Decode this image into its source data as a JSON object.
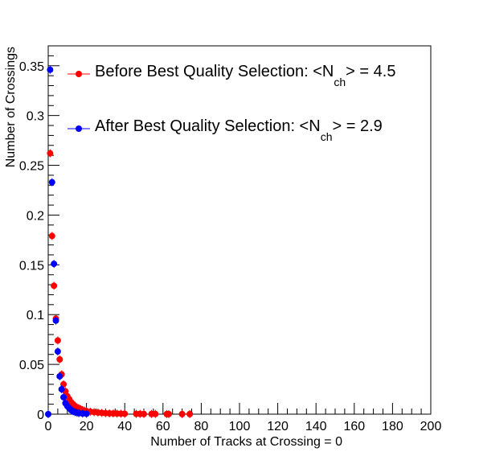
{
  "chart_data": {
    "type": "scatter",
    "xlabel": "Number of Tracks at Crossing = 0",
    "ylabel": "Number of Crossings",
    "xlim": [
      0,
      200
    ],
    "ylim": [
      0,
      0.37
    ],
    "x_ticks": [
      0,
      20,
      40,
      60,
      80,
      100,
      120,
      140,
      160,
      180,
      200
    ],
    "x_tick_labels": [
      "0",
      "20",
      "40",
      "60",
      "80",
      "100",
      "120",
      "140",
      "160",
      "180",
      "200"
    ],
    "y_ticks": [
      0,
      0.05,
      0.1,
      0.15,
      0.2,
      0.25,
      0.3,
      0.35
    ],
    "y_tick_labels": [
      "0",
      "0.05",
      "0.1",
      "0.15",
      "0.2",
      "0.25",
      "0.3",
      "0.35"
    ],
    "grid": false,
    "legend_position": "top",
    "series": [
      {
        "name": "Before Best Quality Selection",
        "legend_prefix": "Before Best Quality Selection: <N",
        "legend_sub": "ch",
        "legend_suffix": "> = 4.5",
        "color": "#ff0000",
        "x": [
          1,
          2,
          3,
          4,
          5,
          6,
          7,
          8,
          9,
          10,
          11,
          12,
          13,
          14,
          15,
          16,
          17,
          18,
          19,
          20,
          22,
          24,
          26,
          28,
          30,
          32,
          34,
          36,
          38,
          40,
          46,
          48,
          50,
          54,
          56,
          62,
          63,
          70,
          74
        ],
        "y": [
          0.262,
          0.179,
          0.129,
          0.096,
          0.074,
          0.055,
          0.04,
          0.03,
          0.023,
          0.018,
          0.015,
          0.012,
          0.01,
          0.008,
          0.007,
          0.006,
          0.005,
          0.004,
          0.0035,
          0.003,
          0.0025,
          0.002,
          0.0016,
          0.0013,
          0.001,
          0.0008,
          0.0007,
          0.0006,
          0.0005,
          0.0004,
          0.0003,
          0.0003,
          0.0002,
          0.0002,
          0.0002,
          0.0001,
          0.0001,
          0.0001,
          0.0001
        ]
      },
      {
        "name": "After Best Quality Selection",
        "legend_prefix": "After Best Quality Selection: <N",
        "legend_sub": "ch",
        "legend_suffix": "> = 2.9",
        "color": "#0000ff",
        "x": [
          0,
          1,
          2,
          3,
          4,
          5,
          6,
          7,
          8,
          9,
          10,
          11,
          12,
          13,
          14,
          15,
          16,
          18,
          20
        ],
        "y": [
          0.0,
          0.346,
          0.233,
          0.151,
          0.094,
          0.063,
          0.038,
          0.025,
          0.017,
          0.011,
          0.008,
          0.006,
          0.004,
          0.003,
          0.002,
          0.0015,
          0.001,
          0.0006,
          0.0004
        ]
      }
    ]
  }
}
